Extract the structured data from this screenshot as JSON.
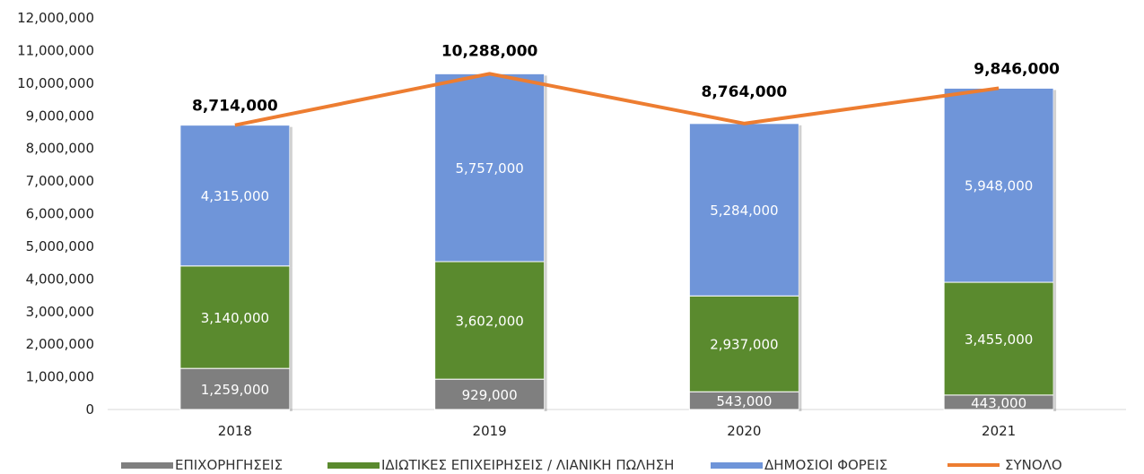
{
  "chart_data": {
    "type": "bar",
    "stacked": true,
    "categories": [
      "2018",
      "2019",
      "2020",
      "2021"
    ],
    "series": [
      {
        "name": "ΕΠΙΧΟΡΗΓΗΣΕΙΣ",
        "values": [
          1259000,
          929000,
          543000,
          443000
        ],
        "labels": [
          "1,259,000",
          "929,000",
          "543,000",
          "443,000"
        ],
        "color": "#7f7f7f"
      },
      {
        "name": "ΙΔΙΩΤΙΚΕΣ ΕΠΙΧΕΙΡΗΣΕΙΣ / ΛΙΑΝΙΚΗ ΠΩΛΗΣΗ",
        "values": [
          3140000,
          3602000,
          2937000,
          3455000
        ],
        "labels": [
          "3,140,000",
          "3,602,000",
          "2,937,000",
          "3,455,000"
        ],
        "color": "#5a8a2e"
      },
      {
        "name": "ΔΗΜΟΣΙΟΙ ΦΟΡΕΙΣ",
        "values": [
          4315000,
          5757000,
          5284000,
          5948000
        ],
        "labels": [
          "4,315,000",
          "5,757,000",
          "5,284,000",
          "5,948,000"
        ],
        "color": "#6f95d9"
      }
    ],
    "line": {
      "name": "ΣΥΝΟΛΟ",
      "values": [
        8714000,
        10288000,
        8764000,
        9846000
      ],
      "labels": [
        "8,714,000",
        "10,288,000",
        "8,764,000",
        "9,846,000"
      ],
      "color": "#ed7d31"
    },
    "ylim": [
      0,
      12000000
    ],
    "yticks": [
      "0",
      "1,000,000",
      "2,000,000",
      "3,000,000",
      "4,000,000",
      "5,000,000",
      "6,000,000",
      "7,000,000",
      "8,000,000",
      "9,000,000",
      "10,000,000",
      "11,000,000",
      "12,000,000"
    ],
    "grid": false,
    "legend_position": "bottom",
    "title": "",
    "xlabel": "",
    "ylabel": ""
  }
}
